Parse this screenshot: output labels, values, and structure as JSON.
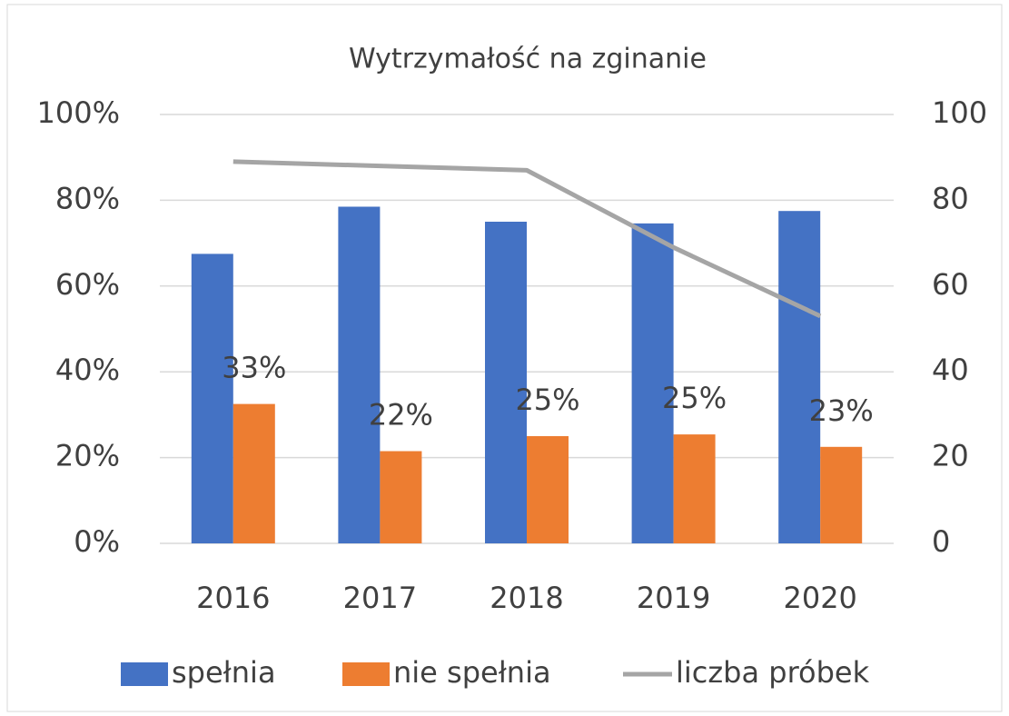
{
  "chart_data": {
    "type": "bar",
    "title": "Wytrzymałość na zginanie",
    "categories": [
      "2016",
      "2017",
      "2018",
      "2019",
      "2020"
    ],
    "series": [
      {
        "name": "spełnia",
        "color": "#4472c4",
        "values": [
          67.5,
          78.5,
          75,
          74.6,
          77.5
        ]
      },
      {
        "name": "nie spełnia",
        "color": "#ed7d31",
        "values": [
          32.5,
          21.5,
          25,
          25.4,
          22.5
        ],
        "value_labels": [
          "33%",
          "22%",
          "25%",
          "25%",
          "23%"
        ]
      },
      {
        "name": "liczba próbek",
        "color": "#a5a5a5",
        "type": "line",
        "axis": "y2",
        "values": [
          89,
          88,
          87,
          69,
          53
        ]
      }
    ],
    "ylim": [
      0,
      100
    ],
    "yticks": [
      {
        "value": 0,
        "label": "0%"
      },
      {
        "value": 20,
        "label": "20%"
      },
      {
        "value": 40,
        "label": "40%"
      },
      {
        "value": 60,
        "label": "60%"
      },
      {
        "value": 80,
        "label": "80%"
      },
      {
        "value": 100,
        "label": "100%"
      }
    ],
    "y2lim": [
      0,
      100
    ],
    "y2ticks": [
      0,
      20,
      40,
      60,
      80,
      100
    ],
    "grid": true,
    "legend": "bottom"
  }
}
